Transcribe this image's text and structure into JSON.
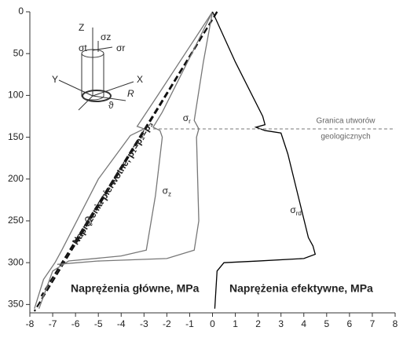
{
  "chart_data": {
    "type": "line",
    "xlim": [
      -8,
      8
    ],
    "xticks": [
      -8,
      -7,
      -6,
      -5,
      -4,
      -3,
      -2,
      -1,
      0,
      1,
      2,
      3,
      4,
      5,
      6,
      7,
      8
    ],
    "ylim": [
      0,
      360
    ],
    "yticks": [
      0,
      50,
      100,
      150,
      200,
      250,
      300,
      350
    ],
    "series": [
      {
        "color": "#111",
        "dashed": true,
        "x": [
          0.2,
          -7.8
        ],
        "y": [
          0,
          358
        ]
      },
      {
        "color": "#111",
        "dashed": true,
        "x": [
          0.2,
          -7.5
        ],
        "y": [
          0,
          340
        ]
      },
      {
        "color": "#777",
        "x": [
          0,
          -1.2,
          -2.4,
          -3.3,
          -3.0,
          -3.6,
          -5,
          -6.6,
          -6.9,
          -7.4,
          -7.8
        ],
        "y": [
          0,
          50,
          100,
          137,
          140,
          148,
          200,
          285,
          300,
          320,
          355
        ]
      },
      {
        "color": "#777",
        "x": [
          0,
          -1,
          -2.2,
          -2.6,
          -2.3,
          -2.2,
          -2.5,
          -2.9,
          -4,
          -6.3,
          -7,
          -7.6
        ],
        "y": [
          0,
          55,
          120,
          138,
          142,
          150,
          220,
          285,
          292,
          298,
          310,
          355
        ]
      },
      {
        "color": "#777",
        "x": [
          0,
          -0.4,
          -0.8,
          -0.6,
          -0.7,
          -0.6,
          -0.8,
          -2,
          -5,
          -6.8
        ],
        "y": [
          0,
          60,
          130,
          140,
          150,
          250,
          285,
          295,
          298,
          302
        ]
      },
      {
        "color": "#000",
        "x": [
          0,
          1,
          2.2,
          2.3,
          1.9,
          2.3,
          3,
          3.3,
          4.2,
          4.4,
          4.5,
          4,
          2,
          0.5,
          0.2,
          0.1
        ],
        "y": [
          0,
          60,
          125,
          135,
          138,
          142,
          145,
          170,
          270,
          280,
          290,
          295,
          298,
          300,
          310,
          355
        ]
      }
    ],
    "boundary": {
      "x": [
        -2.6,
        8
      ],
      "y": 140,
      "label": [
        "Granica utworów",
        "geologicznych"
      ]
    },
    "primary_label": "Naprężenia pierwotne, p₁=p₂=p₃",
    "curve_labels": [
      {
        "symbol": "σ",
        "sub": "t",
        "x": -5.6,
        "y": 248
      },
      {
        "symbol": "σ",
        "sub": "z",
        "x": -2.2,
        "y": 215
      },
      {
        "symbol": "σ",
        "sub": "r",
        "x": -1.3,
        "y": 128
      },
      {
        "symbol": "σ",
        "sub": "rd",
        "x": 3.4,
        "y": 238
      }
    ],
    "text_left": "Naprężenia główne, MPa",
    "text_right": "Naprężenia efektywne, MPa",
    "inset_labels": [
      "Z",
      "σz",
      "σt",
      "σr",
      "Y",
      "X",
      "R",
      "ϑ"
    ]
  }
}
